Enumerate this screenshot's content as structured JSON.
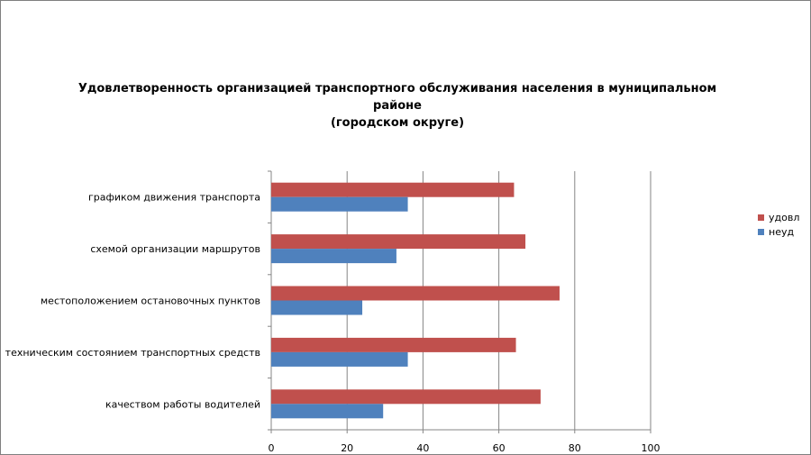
{
  "chart_data": {
    "type": "bar",
    "orientation": "horizontal",
    "title_line1": "Удовлетворенность организацией транспортного обслуживания населения в муниципальном районе",
    "title_line2": "(городском округе)",
    "categories": [
      "графиком движения транспорта",
      "схемой организации маршрутов",
      "местоположением остановочных пунктов",
      "техническим состоянием транспортных средств",
      "качеством работы водителей"
    ],
    "series": [
      {
        "name": "удовл",
        "color": "#c0504d",
        "values": [
          64,
          67,
          76,
          64.5,
          71
        ]
      },
      {
        "name": "неуд",
        "color": "#4f81bd",
        "values": [
          36,
          33,
          24,
          36,
          29.5
        ]
      }
    ],
    "xlim": [
      0,
      100
    ],
    "xticks": [
      "0",
      "20",
      "40",
      "60",
      "80",
      "100"
    ],
    "grid": true,
    "legend_position": "right"
  }
}
